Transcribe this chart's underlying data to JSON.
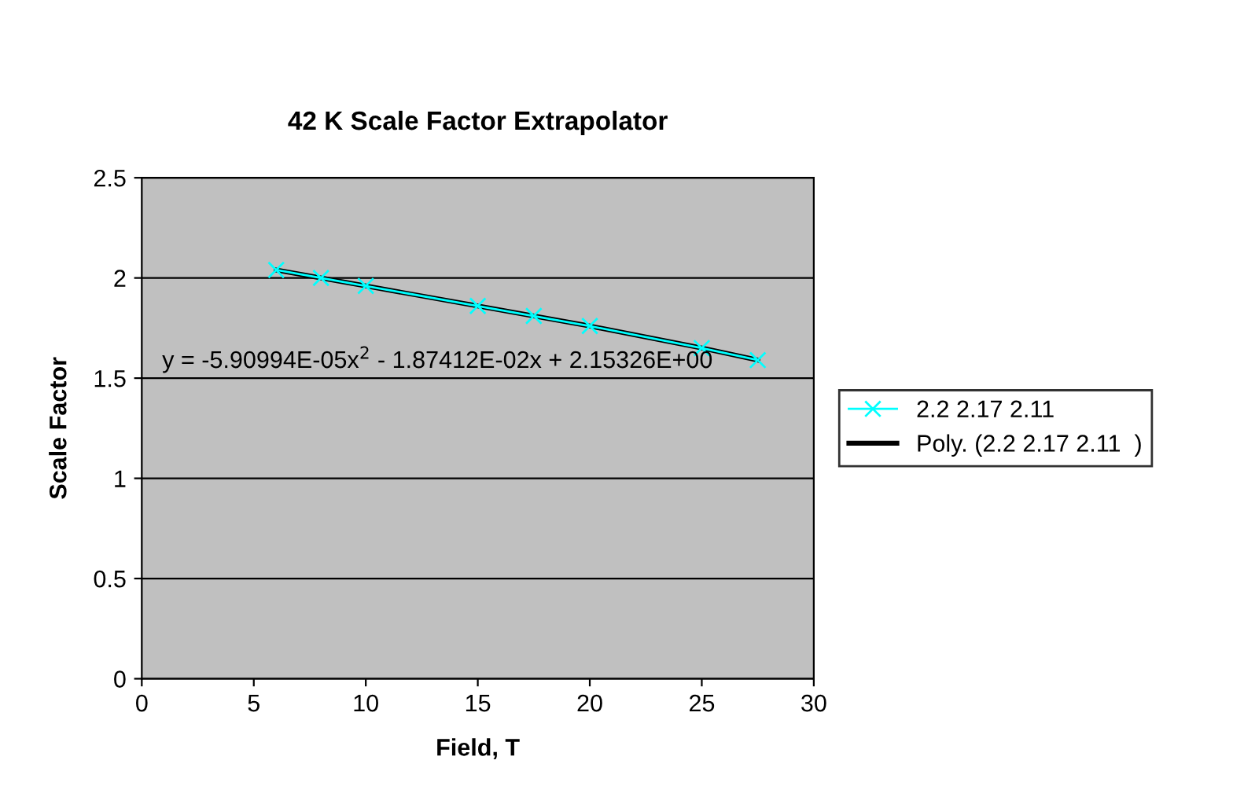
{
  "chart_data": {
    "type": "line",
    "title": "42 K Scale Factor Extrapolator",
    "xlabel": "Field, T",
    "ylabel": "Scale Factor",
    "x": [
      6,
      8,
      10,
      15,
      17.5,
      20,
      25,
      27.5
    ],
    "series": [
      {
        "name": "2.2 2.17 2.11",
        "color": "#00ffff",
        "type": "line",
        "marker": "cross",
        "values": [
          2.04,
          2.0,
          1.96,
          1.86,
          1.81,
          1.76,
          1.65,
          1.59
        ]
      },
      {
        "name": "Poly. (2.2 2.17 2.11  )",
        "color": "#000000",
        "type": "line",
        "marker": "none",
        "x": [
          6,
          10,
          15,
          20,
          25,
          27.5
        ],
        "values": [
          2.04,
          1.96,
          1.86,
          1.76,
          1.65,
          1.59
        ]
      }
    ],
    "xlim": [
      0,
      30
    ],
    "xticks": [
      0,
      5,
      10,
      15,
      20,
      25,
      30
    ],
    "ylim": [
      0,
      2.5
    ],
    "yticks": [
      0,
      0.5,
      1,
      1.5,
      2,
      2.5
    ],
    "grid": "y",
    "legend": "right",
    "annotations": [
      "y = -5.90994E-05x$^{2}$ - 1.87412E-02x + 2.15326E+00"
    ]
  }
}
